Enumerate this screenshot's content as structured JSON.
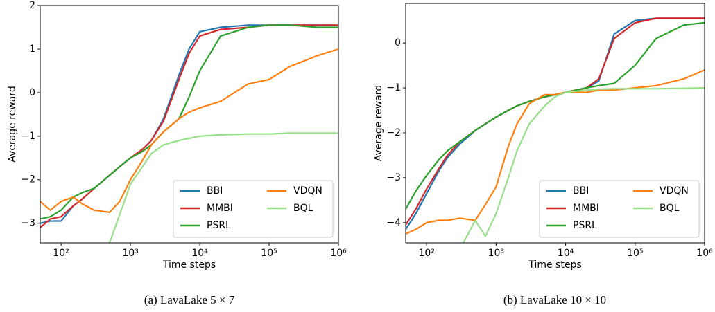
{
  "chart_data": [
    {
      "type": "line",
      "caption": "(a) LavaLake 5 × 7",
      "xlabel": "Time steps",
      "ylabel": "Average reward",
      "xscale": "log",
      "xlim": [
        50,
        1000000
      ],
      "ylim": [
        -3.45,
        2
      ],
      "xticks": [
        {
          "value": 100,
          "label": "10²"
        },
        {
          "value": 1000,
          "label": "10³"
        },
        {
          "value": 10000,
          "label": "10⁴"
        },
        {
          "value": 100000,
          "label": "10⁵"
        },
        {
          "value": 1000000,
          "label": "10⁶"
        }
      ],
      "yticks": [
        {
          "value": -3,
          "label": "−3"
        },
        {
          "value": -2,
          "label": "−2"
        },
        {
          "value": -1,
          "label": "−1"
        },
        0,
        1,
        2
      ],
      "legend": "lower right",
      "grid": false,
      "x": [
        50,
        70,
        100,
        150,
        200,
        300,
        500,
        700,
        1000,
        1500,
        2000,
        3000,
        5000,
        7000,
        10000,
        20000,
        50000,
        100000,
        200000,
        500000,
        1000000
      ],
      "series": [
        {
          "name": "BBI",
          "color": "#1f77b4",
          "values": [
            -3.0,
            -2.95,
            -2.95,
            -2.6,
            -2.45,
            -2.2,
            -1.9,
            -1.7,
            -1.5,
            -1.3,
            -1.1,
            -0.6,
            0.4,
            1.0,
            1.4,
            1.5,
            1.55,
            1.55,
            1.55,
            1.55,
            1.55
          ]
        },
        {
          "name": "MMBI",
          "color": "#d62728",
          "values": [
            -3.1,
            -2.9,
            -2.85,
            -2.6,
            -2.45,
            -2.2,
            -1.9,
            -1.7,
            -1.5,
            -1.3,
            -1.1,
            -0.65,
            0.3,
            0.9,
            1.3,
            1.45,
            1.5,
            1.55,
            1.55,
            1.55,
            1.55
          ]
        },
        {
          "name": "PSRL",
          "color": "#2ca02c",
          "values": [
            -2.9,
            -2.85,
            -2.7,
            -2.4,
            -2.3,
            -2.2,
            -1.9,
            -1.7,
            -1.5,
            -1.35,
            -1.2,
            -0.9,
            -0.6,
            -0.1,
            0.5,
            1.3,
            1.5,
            1.55,
            1.55,
            1.5,
            1.5
          ]
        },
        {
          "name": "VDQN",
          "color": "#ff7f0e",
          "values": [
            -2.5,
            -2.7,
            -2.5,
            -2.4,
            -2.55,
            -2.7,
            -2.75,
            -2.5,
            -2.0,
            -1.55,
            -1.2,
            -0.9,
            -0.6,
            -0.45,
            -0.35,
            -0.2,
            0.2,
            0.3,
            0.6,
            0.85,
            1.0
          ]
        },
        {
          "name": "BQL",
          "color": "#98df8a",
          "values": [
            null,
            null,
            null,
            null,
            null,
            -3.7,
            -3.45,
            -2.8,
            -2.1,
            -1.7,
            -1.4,
            -1.2,
            -1.1,
            -1.05,
            -1.0,
            -0.97,
            -0.95,
            -0.95,
            -0.93,
            -0.93,
            -0.93
          ]
        }
      ]
    },
    {
      "type": "line",
      "caption": "(b) LavaLake 10 × 10",
      "xlabel": "Time steps",
      "ylabel": "Average reward",
      "xscale": "log",
      "xlim": [
        50,
        1000000
      ],
      "ylim": [
        -4.45,
        0.88
      ],
      "xticks": [
        {
          "value": 100,
          "label": "10²"
        },
        {
          "value": 1000,
          "label": "10³"
        },
        {
          "value": 10000,
          "label": "10⁴"
        },
        {
          "value": 100000,
          "label": "10⁵"
        },
        {
          "value": 1000000,
          "label": "10⁶"
        }
      ],
      "yticks": [
        {
          "value": -4,
          "label": "−4"
        },
        {
          "value": -3,
          "label": "−3"
        },
        {
          "value": -2,
          "label": "−2"
        },
        {
          "value": -1,
          "label": "−1"
        },
        0
      ],
      "legend": "lower right",
      "grid": false,
      "x": [
        50,
        70,
        100,
        150,
        200,
        300,
        500,
        700,
        1000,
        1500,
        2000,
        3000,
        5000,
        7000,
        10000,
        20000,
        30000,
        50000,
        100000,
        200000,
        500000,
        1000000
      ],
      "series": [
        {
          "name": "BBI",
          "color": "#1f77b4",
          "values": [
            -4.15,
            -3.8,
            -3.35,
            -2.85,
            -2.55,
            -2.25,
            -1.95,
            -1.8,
            -1.65,
            -1.5,
            -1.4,
            -1.3,
            -1.2,
            -1.15,
            -1.1,
            -1.0,
            -0.85,
            0.2,
            0.5,
            0.55,
            0.55,
            0.55
          ]
        },
        {
          "name": "MMBI",
          "color": "#d62728",
          "values": [
            -4.05,
            -3.7,
            -3.25,
            -2.8,
            -2.5,
            -2.2,
            -1.95,
            -1.8,
            -1.65,
            -1.5,
            -1.4,
            -1.3,
            -1.2,
            -1.15,
            -1.1,
            -1.0,
            -0.8,
            0.1,
            0.45,
            0.55,
            0.55,
            0.55
          ]
        },
        {
          "name": "PSRL",
          "color": "#2ca02c",
          "values": [
            -3.7,
            -3.3,
            -2.95,
            -2.6,
            -2.4,
            -2.2,
            -1.95,
            -1.8,
            -1.65,
            -1.5,
            -1.4,
            -1.3,
            -1.2,
            -1.15,
            -1.1,
            -1.0,
            -0.95,
            -0.9,
            -0.5,
            0.1,
            0.4,
            0.45
          ]
        },
        {
          "name": "VDQN",
          "color": "#ff7f0e",
          "values": [
            -4.25,
            -4.15,
            -4.0,
            -3.95,
            -3.95,
            -3.9,
            -3.95,
            -3.6,
            -3.2,
            -2.3,
            -1.8,
            -1.35,
            -1.15,
            -1.15,
            -1.1,
            -1.1,
            -1.05,
            -1.05,
            -1.0,
            -0.95,
            -0.8,
            -0.6
          ]
        },
        {
          "name": "BQL",
          "color": "#98df8a",
          "values": [
            null,
            null,
            null,
            null,
            null,
            -4.6,
            -3.95,
            -4.3,
            -3.8,
            -3.0,
            -2.4,
            -1.8,
            -1.4,
            -1.2,
            -1.1,
            -1.05,
            -1.03,
            -1.02,
            -1.02,
            -1.02,
            -1.01,
            -1.0
          ]
        }
      ]
    }
  ]
}
